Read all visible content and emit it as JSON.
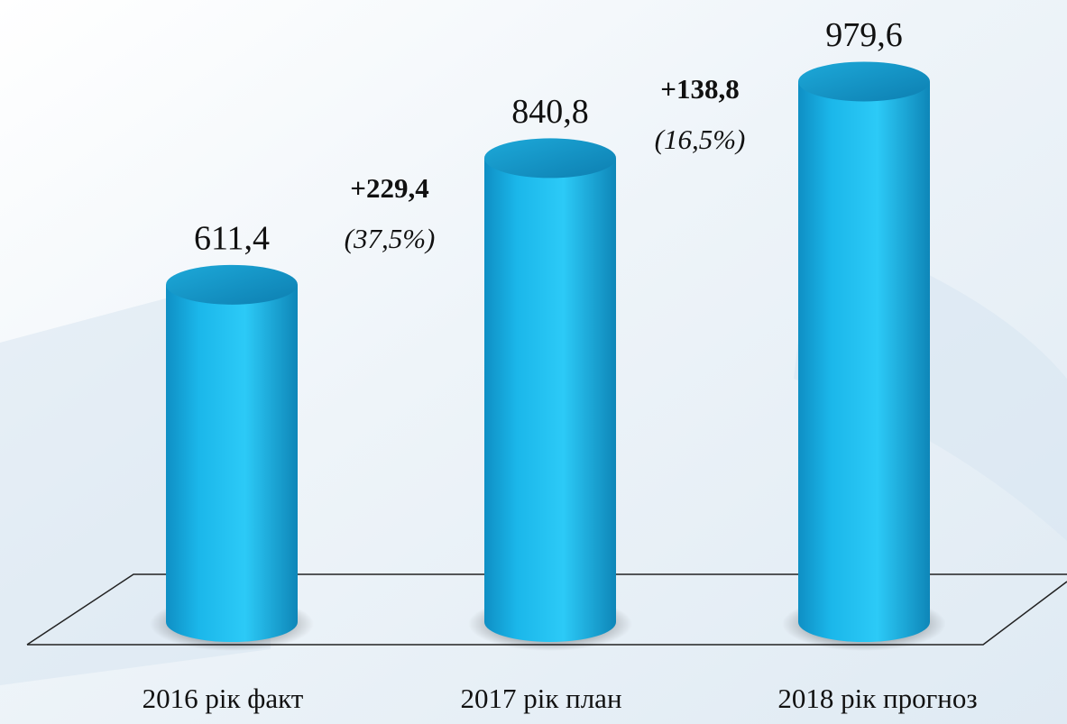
{
  "chart_data": {
    "type": "cylinder-bar",
    "categories": [
      "2016 рік факт",
      "2017 рік план",
      "2018 рік прогноз"
    ],
    "values": [
      611.4,
      840.8,
      979.6
    ],
    "value_labels": [
      "611,4",
      "840,8",
      "979,6"
    ],
    "color": "#1ab8ea",
    "annotations": [
      {
        "text": "+229,4",
        "subtext": "(37,5%)"
      },
      {
        "text": "+138,8",
        "subtext": "(16,5%)"
      }
    ]
  }
}
